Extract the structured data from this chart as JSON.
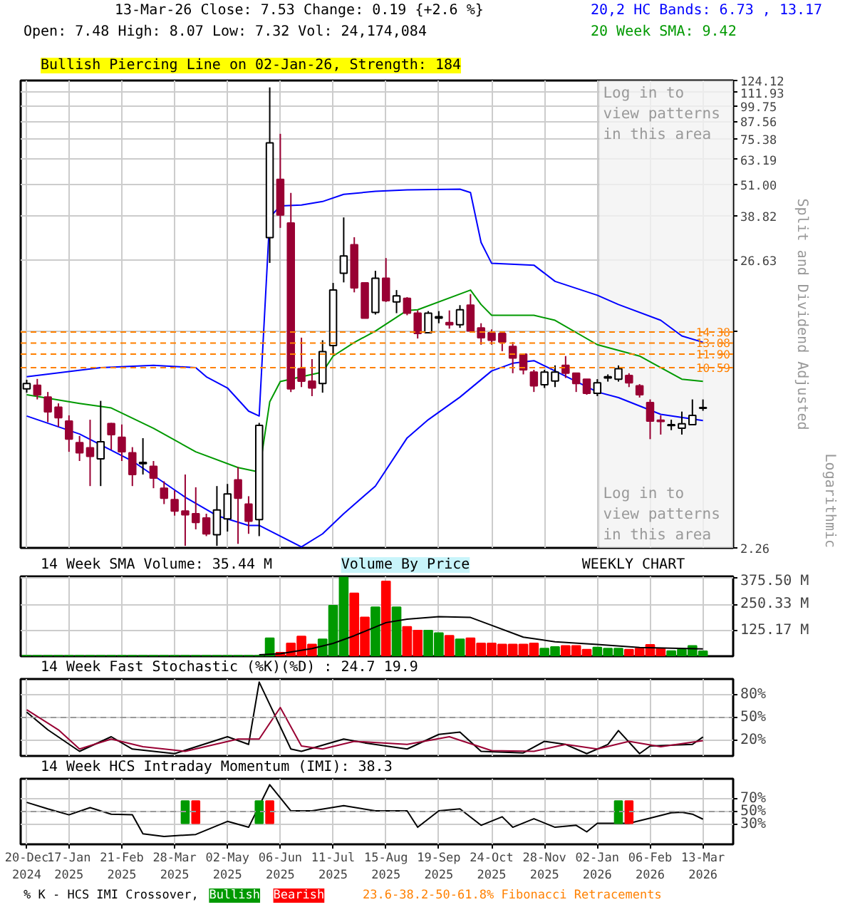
{
  "chart_data": [
    {
      "type": "candlestick",
      "title": "Bullish Piercing Line on 02-Jan-26, Strength: 184",
      "ylabel": "Split and Dividend Adjusted",
      "annotations": [
        "13-Mar-26  Close: 7.53  Change: 0.19 {+2.6 %}",
        "Open: 7.48  High: 8.07  Low: 7.32  Vol: 24,174,084",
        "Log in to view patterns in this area",
        "Logarithmic"
      ],
      "x": [
        "2024-12-20",
        "2024-12-27",
        "2025-01-03",
        "2025-01-10",
        "2025-01-17",
        "2025-01-24",
        "2025-01-31",
        "2025-02-07",
        "2025-02-14",
        "2025-02-21",
        "2025-02-28",
        "2025-03-07",
        "2025-03-14",
        "2025-03-21",
        "2025-03-28",
        "2025-04-04",
        "2025-04-11",
        "2025-04-18",
        "2025-04-25",
        "2025-05-02",
        "2025-05-09",
        "2025-05-16",
        "2025-05-23",
        "2025-05-30",
        "2025-06-06",
        "2025-06-13",
        "2025-06-20",
        "2025-06-27",
        "2025-07-04",
        "2025-07-11",
        "2025-07-18",
        "2025-07-25",
        "2025-08-01",
        "2025-08-08",
        "2025-08-15",
        "2025-08-22",
        "2025-08-29",
        "2025-09-05",
        "2025-09-12",
        "2025-09-19",
        "2025-09-26",
        "2025-10-03",
        "2025-10-10",
        "2025-10-17",
        "2025-10-24",
        "2025-10-31",
        "2025-11-07",
        "2025-11-14",
        "2025-11-21",
        "2025-11-28",
        "2025-12-05",
        "2025-12-12",
        "2025-12-19",
        "2025-12-26",
        "2026-01-02",
        "2026-01-09",
        "2026-01-16",
        "2026-01-23",
        "2026-01-30",
        "2026-02-06",
        "2026-02-13",
        "2026-02-20",
        "2026-02-27",
        "2026-03-06",
        "2026-03-13"
      ],
      "ohlc": [
        [
          8.83,
          9.55,
          8.55,
          9.25
        ],
        [
          9.11,
          9.62,
          8.07,
          8.39
        ],
        [
          8.23,
          8.6,
          6.64,
          7.26
        ],
        [
          7.55,
          7.8,
          6.38,
          6.9
        ],
        [
          6.7,
          7.04,
          5.15,
          5.74
        ],
        [
          5.57,
          5.9,
          4.76,
          5.11
        ],
        [
          5.33,
          6.78,
          3.84,
          4.95
        ],
        [
          4.85,
          7.97,
          3.84,
          5.61
        ],
        [
          6.56,
          6.6,
          5.25,
          5.97
        ],
        [
          5.83,
          6.51,
          4.76,
          5.15
        ],
        [
          5.11,
          5.36,
          3.84,
          4.24
        ],
        [
          4.65,
          5.79,
          4.24,
          4.7
        ],
        [
          4.55,
          4.76,
          3.77,
          4.11
        ],
        [
          3.77,
          4.0,
          3.29,
          3.46
        ],
        [
          3.42,
          3.7,
          2.98,
          3.1
        ],
        [
          3.1,
          4.24,
          2.3,
          3.0
        ],
        [
          3.03,
          3.8,
          2.65,
          2.81
        ],
        [
          2.92,
          3.03,
          2.5,
          2.55
        ],
        [
          2.53,
          3.84,
          2.3,
          3.13
        ],
        [
          2.9,
          3.91,
          2.6,
          3.59
        ],
        [
          4.05,
          4.52,
          2.34,
          3.46
        ],
        [
          3.29,
          3.52,
          2.55,
          2.84
        ],
        [
          2.88,
          6.6,
          2.5,
          6.46
        ],
        [
          32.3,
          117,
          26,
          72.7
        ],
        [
          53.2,
          78.6,
          35.1,
          39.2
        ],
        [
          36.6,
          47.4,
          8.6,
          8.83
        ],
        [
          10.5,
          13.7,
          8.97,
          9.44
        ],
        [
          9.44,
          11.4,
          8.3,
          8.9
        ],
        [
          9.25,
          13.4,
          8.55,
          12.16
        ],
        [
          12.8,
          21.9,
          11.8,
          20.6
        ],
        [
          23.8,
          38.4,
          22,
          27.6
        ],
        [
          30.4,
          32.4,
          20.2,
          21
        ],
        [
          21.9,
          21.9,
          16.2,
          16.2
        ],
        [
          17,
          24.3,
          16.7,
          22.8
        ],
        [
          22.8,
          27.1,
          18.6,
          18.8
        ],
        [
          18.6,
          20.6,
          16.9,
          19.6
        ],
        [
          19.2,
          19.4,
          16.6,
          16.9
        ],
        [
          16.9,
          17.3,
          13.6,
          14.2
        ],
        [
          14.3,
          17.2,
          14.2,
          16.9
        ],
        [
          16.2,
          17.2,
          15.5,
          16.4
        ],
        [
          15.6,
          17.3,
          14.8,
          15.3
        ],
        [
          15.3,
          18.1,
          14.9,
          17.4
        ],
        [
          18.1,
          19.9,
          14.3,
          14.5
        ],
        [
          14.9,
          15.5,
          12.9,
          13.7
        ],
        [
          14.3,
          14.7,
          12.9,
          13.4
        ],
        [
          14.2,
          14.3,
          12.2,
          13.2
        ],
        [
          12.7,
          13.2,
          10.1,
          11.5
        ],
        [
          11.9,
          11.9,
          10,
          10.4
        ],
        [
          10.2,
          10.4,
          8.6,
          9.06
        ],
        [
          9.15,
          10.4,
          8.9,
          10.2
        ],
        [
          9.45,
          10.8,
          8.97,
          10.2
        ],
        [
          10.8,
          11.7,
          9.7,
          10.1
        ],
        [
          10.1,
          10.1,
          8.6,
          9.25
        ],
        [
          9.6,
          9.6,
          8.4,
          8.5
        ],
        [
          8.5,
          9.6,
          8.3,
          9.3
        ],
        [
          9.7,
          10,
          9.4,
          9.8
        ],
        [
          9.6,
          10.8,
          9.4,
          10.5
        ],
        [
          9.9,
          10.1,
          8.97,
          9.3
        ],
        [
          9.06,
          9.2,
          8.2,
          8.4
        ],
        [
          7.85,
          8.07,
          5.74,
          6.7
        ],
        [
          6.75,
          7.04,
          5.97,
          6.68
        ],
        [
          6.45,
          6.78,
          6.2,
          6.5
        ],
        [
          6.3,
          7.27,
          5.97,
          6.55
        ],
        [
          6.5,
          8.07,
          6.5,
          7.04
        ],
        [
          7.48,
          8.07,
          7.32,
          7.53
        ]
      ],
      "colors": [
        "#000000",
        "#990033",
        "#990033",
        "#990033",
        "#990033",
        "#990033",
        "#990033",
        "#000000",
        "#990033",
        "#990033",
        "#990033",
        "#000000",
        "#990033",
        "#990033",
        "#990033",
        "#990033",
        "#990033",
        "#990033",
        "#000000",
        "#000000",
        "#990033",
        "#990033",
        "#000000",
        "#000000",
        "#990033",
        "#990033",
        "#990033",
        "#990033",
        "#000000",
        "#000000",
        "#000000",
        "#990033",
        "#990033",
        "#000000",
        "#990033",
        "#000000",
        "#990033",
        "#990033",
        "#000000",
        "#000000",
        "#990033",
        "#000000",
        "#990033",
        "#990033",
        "#990033",
        "#990033",
        "#990033",
        "#990033",
        "#990033",
        "#000000",
        "#000000",
        "#990033",
        "#990033",
        "#990033",
        "#000000",
        "#000000",
        "#000000",
        "#990033",
        "#990033",
        "#990033",
        "#990033",
        "#000000",
        "#000000",
        "#000000",
        "#000000"
      ],
      "series": [
        {
          "type": "line",
          "name": "20,2 HC Bands: 6.73 , 13.17",
          "color": "#0000ff",
          "x": [
            "2024-12-20",
            "2025-02-07",
            "2025-03-14",
            "2025-04-11",
            "2025-04-18",
            "2025-05-02",
            "2025-05-16",
            "2025-05-23",
            "2025-05-30",
            "2025-06-06",
            "2025-06-20",
            "2025-07-04",
            "2025-07-18",
            "2025-08-08",
            "2025-08-29",
            "2025-10-03",
            "2025-10-10",
            "2025-10-17",
            "2025-10-24",
            "2025-11-21",
            "2025-12-05",
            "2026-01-02",
            "2026-01-16",
            "2026-02-13",
            "2026-02-27",
            "2026-03-13"
          ],
          "values": [
            9.8,
            10.6,
            10.8,
            10.6,
            9.8,
            8.9,
            7.3,
            7.0,
            38.4,
            42.4,
            42.7,
            44,
            46.8,
            48,
            48.6,
            48.9,
            47.5,
            31,
            25.9,
            25.5,
            22.2,
            19.7,
            18.2,
            15.9,
            13.9,
            13.17
          ]
        },
        {
          "type": "line",
          "color": "#0000ff",
          "x": [
            "2024-12-20",
            "2025-01-24",
            "2025-02-28",
            "2025-04-04",
            "2025-04-25",
            "2025-05-16",
            "2025-05-23",
            "2025-06-20",
            "2025-07-04",
            "2025-07-18",
            "2025-08-08",
            "2025-08-29",
            "2025-09-12",
            "2025-10-03",
            "2025-10-24",
            "2025-11-07",
            "2025-11-21",
            "2025-12-05",
            "2026-01-02",
            "2026-01-16",
            "2026-02-13",
            "2026-03-13"
          ],
          "values": [
            7.0,
            6.0,
            4.76,
            3.49,
            2.98,
            2.74,
            2.74,
            2.28,
            2.55,
            3.03,
            3.84,
            5.8,
            6.78,
            8.23,
            10.3,
            11.0,
            11.25,
            10.3,
            8.6,
            8.2,
            7.1,
            6.73
          ]
        },
        {
          "type": "line",
          "name": "20 Week SMA: 9.42",
          "color": "#009900",
          "x": [
            "2024-12-20",
            "2025-01-24",
            "2025-02-14",
            "2025-03-14",
            "2025-04-11",
            "2025-05-09",
            "2025-05-23",
            "2025-05-30",
            "2025-06-06",
            "2025-06-20",
            "2025-07-04",
            "2025-07-11",
            "2025-07-25",
            "2025-08-08",
            "2025-08-29",
            "2025-09-05",
            "2025-10-10",
            "2025-10-17",
            "2025-10-24",
            "2025-11-21",
            "2025-12-05",
            "2026-01-02",
            "2026-01-30",
            "2026-02-27",
            "2026-03-13"
          ],
          "values": [
            8.4,
            7.8,
            7.5,
            6.3,
            5.15,
            4.5,
            4.33,
            7.9,
            9.4,
            9.8,
            10.2,
            11.7,
            13.15,
            14.5,
            17.3,
            17.4,
            20.6,
            18.2,
            16.6,
            16.6,
            15.9,
            12.9,
            11.7,
            9.6,
            9.42
          ]
        }
      ],
      "log": true,
      "xlim": [
        "2024-12-16",
        "2026-04-02"
      ],
      "ylim": [
        2.26,
        124.12
      ],
      "xticks": [
        {
          "value": "2024-12-20",
          "label": null
        },
        {
          "value": "2025-01-17",
          "label": null
        },
        {
          "value": "2025-02-21",
          "label": null
        },
        {
          "value": "2025-03-28",
          "label": null
        },
        {
          "value": "2025-05-02",
          "label": null
        },
        {
          "value": "2025-06-06",
          "label": null
        },
        {
          "value": "2025-07-11",
          "label": null
        },
        {
          "value": "2025-08-15",
          "label": null
        },
        {
          "value": "2025-09-19",
          "label": null
        },
        {
          "value": "2025-10-24",
          "label": null
        },
        {
          "value": "2025-11-28",
          "label": null
        },
        {
          "value": "2026-01-02",
          "label": null
        },
        {
          "value": "2026-02-06",
          "label": null
        },
        {
          "value": "2026-03-13",
          "label": null
        }
      ],
      "yticks": [
        2.26,
        {
          "value": 14.44,
          "label": null
        },
        26.63,
        38.82,
        {
          "value": 51,
          "label": "51.00"
        },
        63.19,
        75.38,
        87.56,
        99.75,
        111.93,
        124.12
      ],
      "grid": true,
      "legend": "top right",
      "tick_labels": "y",
      "ref_lines": [
        {
          "axis": "y",
          "value": 14.38,
          "label": "14.38",
          "color": "#ff8000",
          "line_style": "dashed"
        },
        {
          "axis": "y",
          "value": 13.08,
          "label": "13.08",
          "color": "#ff8000",
          "line_style": "dashed"
        },
        {
          "axis": "y",
          "value": 11.9,
          "label": "11.90",
          "color": "#ff8000",
          "line_style": "dashed"
        },
        {
          "axis": "y",
          "value": 10.59,
          "label": "10.59",
          "color": "#ff8000",
          "line_style": "dashed"
        }
      ],
      "bands": [
        {
          "axis": "x",
          "from": "2026-01-03",
          "to": "2026-04-02",
          "label": "Log in to view patterns in this area",
          "color": "#f2f2f2"
        }
      ]
    },
    {
      "type": "bar",
      "title": "14 Week SMA Volume: 35.44 M",
      "annotations": [
        "Volume By Price",
        "WEEKLY CHART"
      ],
      "x": [
        "2024-12-20",
        "2024-12-27",
        "2025-01-03",
        "2025-01-10",
        "2025-01-17",
        "2025-01-24",
        "2025-01-31",
        "2025-02-07",
        "2025-02-14",
        "2025-02-21",
        "2025-02-28",
        "2025-03-07",
        "2025-03-14",
        "2025-03-21",
        "2025-03-28",
        "2025-04-04",
        "2025-04-11",
        "2025-04-18",
        "2025-04-25",
        "2025-05-02",
        "2025-05-09",
        "2025-05-16",
        "2025-05-23",
        "2025-05-30",
        "2025-06-06",
        "2025-06-13",
        "2025-06-20",
        "2025-06-27",
        "2025-07-04",
        "2025-07-11",
        "2025-07-18",
        "2025-07-25",
        "2025-08-01",
        "2025-08-08",
        "2025-08-15",
        "2025-08-22",
        "2025-08-29",
        "2025-09-05",
        "2025-09-12",
        "2025-09-19",
        "2025-09-26",
        "2025-10-03",
        "2025-10-10",
        "2025-10-17",
        "2025-10-24",
        "2025-10-31",
        "2025-11-07",
        "2025-11-14",
        "2025-11-21",
        "2025-11-28",
        "2025-12-05",
        "2025-12-12",
        "2025-12-19",
        "2025-12-26",
        "2026-01-02",
        "2026-01-09",
        "2026-01-16",
        "2026-01-23",
        "2026-01-30",
        "2026-02-06",
        "2026-02-13",
        "2026-02-20",
        "2026-02-27",
        "2026-03-06",
        "2026-03-13"
      ],
      "values": [
        3,
        3,
        3,
        3,
        3,
        3,
        3,
        3,
        3,
        3,
        3,
        3,
        3,
        3,
        3,
        3,
        3,
        3,
        3,
        3,
        3,
        3,
        3,
        87,
        17,
        62,
        95,
        57,
        82,
        244,
        380,
        303,
        187,
        236,
        361,
        236,
        142,
        124,
        124,
        112,
        99,
        82,
        87,
        62,
        62,
        57,
        57,
        57,
        62,
        37,
        45,
        50,
        50,
        32,
        42,
        37,
        37,
        32,
        37,
        55,
        37,
        25,
        32,
        50,
        24.17
      ],
      "colors": [
        "#009900",
        "#009900",
        "#009900",
        "#009900",
        "#009900",
        "#009900",
        "#009900",
        "#009900",
        "#009900",
        "#009900",
        "#009900",
        "#009900",
        "#009900",
        "#009900",
        "#009900",
        "#009900",
        "#009900",
        "#009900",
        "#009900",
        "#009900",
        "#009900",
        "#009900",
        "#009900",
        "#009900",
        "#ff0000",
        "#ff0000",
        "#ff0000",
        "#ff0000",
        "#009900",
        "#009900",
        "#009900",
        "#ff0000",
        "#ff0000",
        "#009900",
        "#ff0000",
        "#009900",
        "#ff0000",
        "#ff0000",
        "#009900",
        "#009900",
        "#ff0000",
        "#009900",
        "#ff0000",
        "#ff0000",
        "#ff0000",
        "#ff0000",
        "#ff0000",
        "#ff0000",
        "#ff0000",
        "#009900",
        "#009900",
        "#ff0000",
        "#ff0000",
        "#ff0000",
        "#009900",
        "#009900",
        "#009900",
        "#ff0000",
        "#ff0000",
        "#ff0000",
        "#ff0000",
        "#009900",
        "#009900",
        "#009900",
        "#009900"
      ],
      "series": [
        {
          "type": "line",
          "color": "#000000",
          "x": [
            "2025-05-23",
            "2025-06-06",
            "2025-06-27",
            "2025-07-11",
            "2025-07-25",
            "2025-08-15",
            "2025-08-29",
            "2025-09-19",
            "2025-10-10",
            "2025-10-24",
            "2025-11-14",
            "2025-12-05",
            "2026-01-02",
            "2026-01-30",
            "2026-03-13"
          ],
          "values": [
            7,
            12,
            37,
            62,
            99,
            162,
            179,
            191,
            187,
            149,
            92,
            70,
            57,
            42,
            35.44
          ]
        }
      ],
      "xlim": [
        "2024-12-16",
        "2026-04-02"
      ],
      "ylim": [
        0,
        385
      ],
      "xticks": [
        {
          "value": "2024-12-20",
          "label": null
        },
        {
          "value": "2025-01-17",
          "label": null
        },
        {
          "value": "2025-02-21",
          "label": null
        },
        {
          "value": "2025-03-28",
          "label": null
        },
        {
          "value": "2025-05-02",
          "label": null
        },
        {
          "value": "2025-06-06",
          "label": null
        },
        {
          "value": "2025-07-11",
          "label": null
        },
        {
          "value": "2025-08-15",
          "label": null
        },
        {
          "value": "2025-09-19",
          "label": null
        },
        {
          "value": "2025-10-24",
          "label": null
        },
        {
          "value": "2025-11-28",
          "label": null
        },
        {
          "value": "2026-01-02",
          "label": null
        },
        {
          "value": "2026-02-06",
          "label": null
        },
        {
          "value": "2026-03-13",
          "label": null
        }
      ],
      "yticks": [
        {
          "value": 125.17,
          "label": "125.17 M"
        },
        {
          "value": 250.33,
          "label": "250.33 M"
        },
        {
          "value": 375.5,
          "label": "375.50 M"
        }
      ],
      "grid": true,
      "tick_labels": "y"
    },
    {
      "type": "line",
      "title": "14 Week Fast Stochastic (%K)(%D) : 24.7 19.9",
      "series": [
        {
          "color": "#000000",
          "x": [
            "2024-12-20",
            "2025-01-03",
            "2025-01-24",
            "2025-02-14",
            "2025-02-28",
            "2025-03-28",
            "2025-05-02",
            "2025-05-16",
            "2025-05-23",
            "2025-06-13",
            "2025-06-20",
            "2025-07-18",
            "2025-08-01",
            "2025-08-29",
            "2025-09-19",
            "2025-10-03",
            "2025-10-17",
            "2025-11-14",
            "2025-11-28",
            "2025-12-12",
            "2025-12-26",
            "2026-01-09",
            "2026-01-16",
            "2026-01-30",
            "2026-02-06",
            "2026-03-06",
            "2026-03-13"
          ],
          "values": [
            57,
            34,
            6,
            25,
            9,
            3,
            25,
            15,
            96,
            9,
            6,
            22,
            17,
            9,
            28,
            31,
            6,
            4,
            19,
            15,
            3,
            15,
            33,
            3,
            13,
            15,
            24.7
          ]
        },
        {
          "color": "#990033",
          "x": [
            "2024-12-20",
            "2025-01-10",
            "2025-01-24",
            "2025-02-14",
            "2025-03-07",
            "2025-04-04",
            "2025-05-09",
            "2025-05-23",
            "2025-06-06",
            "2025-06-20",
            "2025-07-04",
            "2025-07-25",
            "2025-08-29",
            "2025-09-26",
            "2025-10-24",
            "2025-11-21",
            "2025-12-12",
            "2026-01-02",
            "2026-01-23",
            "2026-02-13",
            "2026-03-13"
          ],
          "values": [
            60,
            34,
            9,
            22,
            12,
            6,
            22,
            22,
            63,
            13,
            9,
            19,
            15,
            25,
            7,
            6,
            15,
            9,
            19,
            12,
            19.9
          ]
        }
      ],
      "xlim": [
        "2024-12-16",
        "2026-04-02"
      ],
      "ylim": [
        0,
        100
      ],
      "xticks": [
        {
          "value": "2024-12-20",
          "label": null
        },
        {
          "value": "2025-01-17",
          "label": null
        },
        {
          "value": "2025-02-21",
          "label": null
        },
        {
          "value": "2025-03-28",
          "label": null
        },
        {
          "value": "2025-05-02",
          "label": null
        },
        {
          "value": "2025-06-06",
          "label": null
        },
        {
          "value": "2025-07-11",
          "label": null
        },
        {
          "value": "2025-08-15",
          "label": null
        },
        {
          "value": "2025-09-19",
          "label": null
        },
        {
          "value": "2025-10-24",
          "label": null
        },
        {
          "value": "2025-11-28",
          "label": null
        },
        {
          "value": "2026-01-02",
          "label": null
        },
        {
          "value": "2026-02-06",
          "label": null
        },
        {
          "value": "2026-03-13",
          "label": null
        }
      ],
      "yticks": [
        {
          "value": 20,
          "label": "20%"
        },
        {
          "value": 50,
          "label": "50%"
        },
        {
          "value": 80,
          "label": "80%"
        }
      ],
      "ref_lines": [
        {
          "axis": "y",
          "value": 50,
          "color": "#999999",
          "line_style": "dashed"
        }
      ],
      "grid": true,
      "tick_labels": "y"
    },
    {
      "type": "line",
      "title": "14 Week HCS Intraday Momentum (IMI): 38.3",
      "legend_title": "% K - HCS IMI Crossover,",
      "annotations": [
        "23.6-38.2-50-61.8% Fibonacci Retracements"
      ],
      "series": [
        {
          "color": "#000000",
          "x": [
            "2024-12-20",
            "2025-01-03",
            "2025-01-17",
            "2025-01-31",
            "2025-02-14",
            "2025-02-28",
            "2025-03-07",
            "2025-03-21",
            "2025-04-11",
            "2025-05-02",
            "2025-05-16",
            "2025-05-30",
            "2025-06-13",
            "2025-06-27",
            "2025-07-18",
            "2025-08-08",
            "2025-08-29",
            "2025-09-05",
            "2025-09-19",
            "2025-10-03",
            "2025-10-17",
            "2025-10-31",
            "2025-11-07",
            "2025-11-21",
            "2025-12-05",
            "2025-12-19",
            "2025-12-26",
            "2026-01-02",
            "2026-01-23",
            "2026-02-06",
            "2026-02-20",
            "2026-02-27",
            "2026-03-06",
            "2026-03-13"
          ],
          "values": [
            64,
            54,
            45,
            56,
            46,
            45,
            16,
            12,
            15,
            35,
            26,
            91,
            51,
            51,
            59,
            51,
            51,
            26,
            51,
            54,
            29,
            42,
            26,
            39,
            26,
            29,
            19,
            32,
            32,
            40,
            48,
            49,
            46,
            38.3
          ]
        },
        {
          "type": "bar",
          "name": "Bullish",
          "color": "#009900",
          "x": [
            "2025-04-04",
            "2025-05-23",
            "2026-01-16"
          ],
          "base": [
            32,
            32,
            32
          ],
          "values": [
            34,
            34,
            34
          ]
        },
        {
          "type": "bar",
          "name": "Bearish",
          "color": "#ff0000",
          "x": [
            "2025-04-11",
            "2025-05-30",
            "2026-01-23"
          ],
          "base": [
            32,
            32,
            32
          ],
          "values": [
            34,
            34,
            34
          ]
        }
      ],
      "xlim": [
        "2024-12-16",
        "2026-04-02"
      ],
      "ylim": [
        0,
        100
      ],
      "xticks": [
        {
          "value": "2024-12-20",
          "label": "20-Dec 2024"
        },
        {
          "value": "2025-01-17",
          "label": "17-Jan 2025"
        },
        {
          "value": "2025-02-21",
          "label": "21-Feb 2025"
        },
        {
          "value": "2025-03-28",
          "label": "28-Mar 2025"
        },
        {
          "value": "2025-05-02",
          "label": "02-May 2025"
        },
        {
          "value": "2025-06-06",
          "label": "06-Jun 2025"
        },
        {
          "value": "2025-07-11",
          "label": "11-Jul 2025"
        },
        {
          "value": "2025-08-15",
          "label": "15-Aug 2025"
        },
        {
          "value": "2025-09-19",
          "label": "19-Sep 2025"
        },
        {
          "value": "2025-10-24",
          "label": "24-Oct 2025"
        },
        {
          "value": "2025-11-28",
          "label": "28-Nov 2025"
        },
        {
          "value": "2026-01-02",
          "label": "02-Jan 2026"
        },
        {
          "value": "2026-02-06",
          "label": "06-Feb 2026"
        },
        {
          "value": "2026-03-13",
          "label": "13-Mar 2026"
        }
      ],
      "yticks": [
        {
          "value": 30,
          "label": "30%"
        },
        {
          "value": 50,
          "label": "50%"
        },
        {
          "value": 70,
          "label": "70%"
        }
      ],
      "ref_lines": [
        {
          "axis": "y",
          "value": 50,
          "color": "#999999",
          "line_style": "dashed"
        }
      ],
      "grid": true,
      "legend": "bottom left"
    }
  ]
}
